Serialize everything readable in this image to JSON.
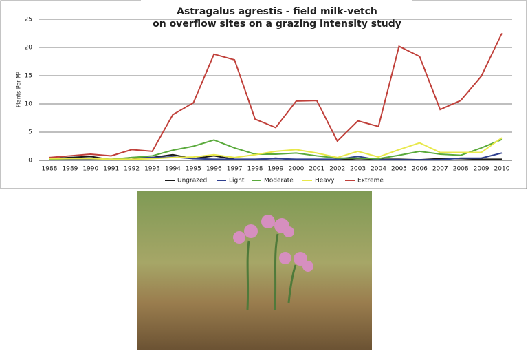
{
  "chart_data": {
    "type": "line",
    "title": [
      "Astragalus agrestis  -  field milk-vetch",
      "on overflow sites on a grazing intensity study"
    ],
    "y_label": "Plants Per M²",
    "categories": [
      "1988",
      "1989",
      "1990",
      "1991",
      "1992",
      "1993",
      "1994",
      "1995",
      "1996",
      "1997",
      "1998",
      "1999",
      "2000",
      "2001",
      "2002",
      "2003",
      "2004",
      "2005",
      "2006",
      "2007",
      "2008",
      "2009",
      "2010"
    ],
    "ylim": [
      0,
      25
    ],
    "yticks": [
      0,
      5,
      10,
      15,
      20,
      25
    ],
    "grid": true,
    "legend": "bottom",
    "series": [
      {
        "name": "Ungrazed",
        "color": "#1a1a1a",
        "values": [
          0.3,
          0.5,
          0.7,
          0.1,
          0.2,
          0.5,
          1.0,
          0.3,
          0.8,
          0.2,
          0.1,
          0.4,
          0.1,
          0.1,
          0.1,
          0.3,
          0.2,
          0.2,
          0.1,
          0.3,
          0.3,
          0.2,
          0.2
        ]
      },
      {
        "name": "Light",
        "color": "#2e3f8f",
        "values": [
          0.1,
          0.1,
          0.1,
          0.1,
          0.5,
          0.5,
          0.6,
          0.3,
          0.2,
          0.2,
          0.2,
          0.3,
          0.2,
          0.2,
          0.2,
          0.7,
          0.1,
          0.1,
          0.1,
          0.1,
          0.4,
          0.4,
          1.3
        ]
      },
      {
        "name": "Moderate",
        "color": "#5aaa3c",
        "values": [
          0.2,
          0.3,
          0.4,
          0.2,
          0.5,
          0.8,
          1.8,
          2.5,
          3.6,
          2.2,
          1.1,
          1.1,
          1.3,
          0.8,
          0.4,
          0.4,
          0.3,
          0.9,
          1.6,
          1.1,
          0.9,
          2.2,
          3.7
        ]
      },
      {
        "name": "Heavy",
        "color": "#e8e84a",
        "values": [
          0.3,
          0.3,
          0.3,
          0.2,
          0.2,
          0.3,
          0.5,
          0.6,
          1.0,
          0.5,
          1.0,
          1.6,
          1.9,
          1.3,
          0.5,
          1.6,
          0.6,
          1.9,
          3.1,
          1.4,
          1.4,
          1.4,
          4.0
        ]
      },
      {
        "name": "Extreme",
        "color": "#c0403a",
        "values": [
          0.5,
          0.8,
          1.1,
          0.8,
          1.9,
          1.6,
          8.1,
          10.2,
          18.8,
          17.8,
          7.3,
          5.8,
          10.5,
          10.6,
          3.4,
          7.0,
          6.0,
          20.2,
          18.4,
          9.0,
          10.6,
          14.9,
          22.5
        ]
      }
    ]
  }
}
